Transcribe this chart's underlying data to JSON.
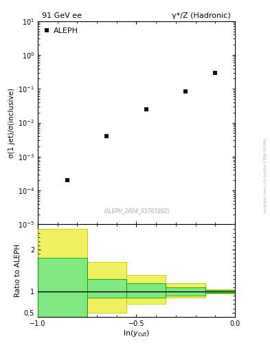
{
  "title_left": "91 GeV ee",
  "title_right": "γ*/Z (Hadronic)",
  "ylabel_main": "σ(1 jet)/σ(inclusive)",
  "ylabel_ratio": "Ratio to ALEPH",
  "xlabel": "ln(y_{cut})",
  "watermark": "(ALEPH_2004_S5765862)",
  "side_text": "mcplots.cern.ch [arXiv:1306.3436]",
  "legend_label": "ALEPH",
  "data_x": [
    -0.85,
    -0.65,
    -0.45,
    -0.25,
    -0.1
  ],
  "data_y": [
    0.0002,
    0.004,
    0.025,
    0.085,
    0.3
  ],
  "ylim_main": [
    1e-05,
    10
  ],
  "ylim_ratio": [
    0.4,
    2.6
  ],
  "xlim": [
    -1.0,
    0.0
  ],
  "ratio_bins_x": [
    -1.0,
    -0.75,
    -0.55,
    -0.35,
    -0.15,
    0.0
  ],
  "yellow_low": [
    0.4,
    0.5,
    0.7,
    0.85,
    0.95
  ],
  "yellow_high": [
    2.5,
    1.7,
    1.4,
    1.2,
    1.05
  ],
  "green_low": [
    0.4,
    0.85,
    0.85,
    0.9,
    0.97
  ],
  "green_high": [
    1.8,
    1.3,
    1.2,
    1.1,
    1.03
  ],
  "marker_color": "#111111",
  "yellow_color": "#f0f060",
  "green_color": "#80e880",
  "bg_color": "#ffffff"
}
